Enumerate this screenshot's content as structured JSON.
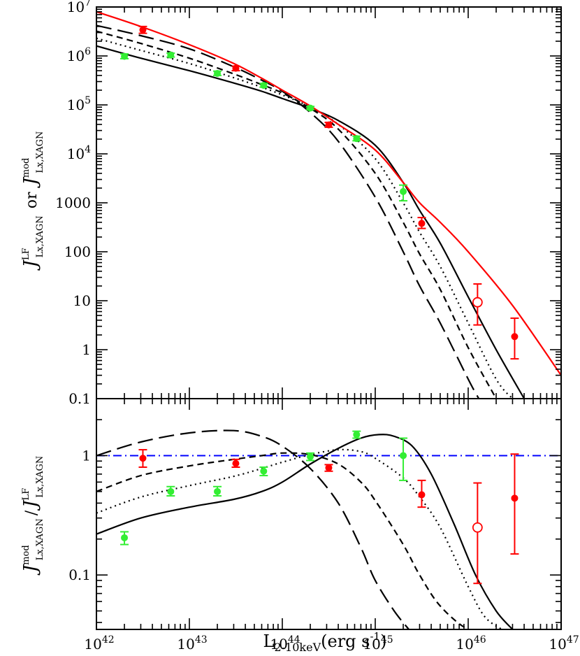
{
  "chart_data": [
    {
      "type": "line",
      "panel": "top",
      "xscale": "log",
      "yscale": "log",
      "xlim": [
        1e+42,
        1e+47
      ],
      "ylim": [
        0.1,
        10000000.0
      ],
      "xlabel": "L2-10keV(erg s-1)",
      "xlabel_main": "L",
      "xlabel_sub": "2-10keV",
      "xlabel_unit": "(erg s",
      "xlabel_unit_sup": "-1",
      "xlabel_close": ")",
      "ylabel": "J^LF_Lx,XAGN or J^mod_Lx,XAGN",
      "ylabel_parts": {
        "sym": "J",
        "sup_a": "LF",
        "sub_a": "Lx,XAGN",
        "mid": "or",
        "sup_b": "mod",
        "sub_b": "Lx,XAGN"
      },
      "yticks": [
        {
          "v": 10000000.0,
          "label": "10",
          "sup": "7"
        },
        {
          "v": 1000000.0,
          "label": "10",
          "sup": "6"
        },
        {
          "v": 100000.0,
          "label": "10",
          "sup": "5"
        },
        {
          "v": 10000.0,
          "label": "10",
          "sup": "4"
        },
        {
          "v": 1000,
          "label": "1000",
          "sup": ""
        },
        {
          "v": 100,
          "label": "100",
          "sup": ""
        },
        {
          "v": 10,
          "label": "10",
          "sup": ""
        },
        {
          "v": 1,
          "label": "1",
          "sup": ""
        },
        {
          "v": 0.1,
          "label": "0.1",
          "sup": ""
        }
      ],
      "series": [
        {
          "style": "solid-black",
          "color": "#000000",
          "x": [
            1e+42,
            3e+42,
            1e+43,
            3e+43,
            6e+43,
            1e+44,
            2e+44,
            4e+44,
            1e+45,
            2e+45,
            3e+45,
            5e+45,
            1e+46,
            2e+46,
            4e+46
          ],
          "y": [
            1600000.0,
            900000.0,
            500000.0,
            280000.0,
            190000.0,
            135000.0,
            85000.0,
            48000.0,
            15000.0,
            2600,
            700,
            150,
            12,
            1.0,
            0.1
          ]
        },
        {
          "style": "dotted-black",
          "color": "#000000",
          "x": [
            1e+42,
            3e+42,
            1e+43,
            3e+43,
            6e+43,
            1e+44,
            2e+44,
            4e+44,
            1e+45,
            2e+45,
            3e+45,
            5e+45,
            1e+46,
            2e+46,
            3e+46
          ],
          "y": [
            2300000.0,
            1300000.0,
            700000.0,
            360000.0,
            230000.0,
            160000.0,
            90000.0,
            40000.0,
            8000.0,
            1000,
            250,
            50,
            3.5,
            0.25,
            0.1
          ]
        },
        {
          "style": "short-dash-black",
          "color": "#000000",
          "x": [
            1e+42,
            3e+42,
            1e+43,
            3e+43,
            6e+43,
            1e+44,
            2e+44,
            4e+44,
            1e+45,
            2e+45,
            3e+45,
            5e+45,
            1e+46,
            2e+46
          ],
          "y": [
            3200000.0,
            1800000.0,
            900000.0,
            430000.0,
            260000.0,
            175000.0,
            85000.0,
            32000.0,
            4000.0,
            400,
            90,
            17,
            1.1,
            0.1
          ]
        },
        {
          "style": "long-dash-black",
          "color": "#000000",
          "x": [
            1e+42,
            3e+42,
            1e+43,
            3e+43,
            6e+43,
            1e+44,
            2e+44,
            4e+44,
            1e+45,
            2e+45,
            3e+45,
            5e+45,
            1e+46,
            1.3e+46
          ],
          "y": [
            4200000.0,
            2600000.0,
            1400000.0,
            600000.0,
            320000.0,
            190000.0,
            70000.0,
            18000.0,
            1300,
            100,
            20,
            3.5,
            0.25,
            0.1
          ]
        },
        {
          "style": "solid-red",
          "color": "#ff0000",
          "x": [
            1e+42,
            3e+42,
            1e+43,
            3e+43,
            6e+43,
            1e+44,
            2e+44,
            4e+44,
            1e+45,
            2e+45,
            3e+45,
            5e+45,
            1e+46,
            3e+46,
            1e+47
          ],
          "y": [
            8000000.0,
            4000000.0,
            1700000.0,
            700000.0,
            350000.0,
            200000.0,
            95000.0,
            40000.0,
            12000.0,
            2600.0,
            1000,
            400,
            100,
            8,
            0.3
          ]
        }
      ],
      "points": [
        {
          "color": "#ff0000",
          "x": 3.16e+42,
          "y": 3400000.0,
          "ylo": 2900000.0,
          "yhi": 4000000.0,
          "marker": "filled"
        },
        {
          "color": "#ff0000",
          "x": 3.16e+43,
          "y": 560000.0,
          "ylo": 500000.0,
          "yhi": 620000.0,
          "marker": "filled"
        },
        {
          "color": "#ff0000",
          "x": 3.16e+44,
          "y": 39000.0,
          "ylo": 35000.0,
          "yhi": 44000.0,
          "marker": "filled"
        },
        {
          "color": "#ff0000",
          "x": 3.16e+45,
          "y": 380,
          "ylo": 300,
          "yhi": 500,
          "marker": "filled"
        },
        {
          "color": "#ff0000",
          "x": 1.26e+46,
          "y": 9.3,
          "ylo": 3.2,
          "yhi": 22,
          "marker": "open"
        },
        {
          "color": "#ff0000",
          "x": 3.16e+46,
          "y": 1.85,
          "ylo": 0.65,
          "yhi": 4.4,
          "marker": "filled"
        },
        {
          "color": "#33ee33",
          "x": 2e+42,
          "y": 980000.0,
          "ylo": 880000.0,
          "yhi": 1100000.0,
          "marker": "filled"
        },
        {
          "color": "#33ee33",
          "x": 6.3e+42,
          "y": 1040000.0,
          "ylo": 950000.0,
          "yhi": 1140000.0,
          "marker": "filled"
        },
        {
          "color": "#33ee33",
          "x": 2e+43,
          "y": 440000.0,
          "ylo": 400000.0,
          "yhi": 490000.0,
          "marker": "filled"
        },
        {
          "color": "#33ee33",
          "x": 6.3e+43,
          "y": 250000.0,
          "ylo": 230000.0,
          "yhi": 275000.0,
          "marker": "filled"
        },
        {
          "color": "#33ee33",
          "x": 2e+44,
          "y": 86000.0,
          "ylo": 80000.0,
          "yhi": 93000.0,
          "marker": "filled"
        },
        {
          "color": "#33ee33",
          "x": 6.3e+44,
          "y": 20500.0,
          "ylo": 18500.0,
          "yhi": 23000.0,
          "marker": "filled"
        },
        {
          "color": "#33ee33",
          "x": 2e+45,
          "y": 1700,
          "ylo": 1100,
          "yhi": 2300,
          "marker": "filled"
        }
      ]
    },
    {
      "type": "line",
      "panel": "bottom",
      "xscale": "log",
      "yscale": "log",
      "xlim": [
        1e+42,
        1e+47
      ],
      "ylim": [
        0.035,
        3.0
      ],
      "ylabel": "J^mod_Lx,XAGN / J^LF_Lx,XAGN",
      "ylabel_parts": {
        "sym": "J",
        "sup_a": "mod",
        "sub_a": "Lx,XAGN",
        "mid": "/",
        "sup_b": "LF",
        "sub_b": "Lx,XAGN"
      },
      "yticks": [
        {
          "v": 1,
          "label": "1",
          "sup": ""
        },
        {
          "v": 0.1,
          "label": "0.1",
          "sup": ""
        }
      ],
      "xticks": [
        {
          "v": 1e+42,
          "label": "10",
          "sup": "42"
        },
        {
          "v": 1e+43,
          "label": "10",
          "sup": "43"
        },
        {
          "v": 1e+44,
          "label": "10",
          "sup": "44"
        },
        {
          "v": 1e+45,
          "label": "10",
          "sup": "45"
        },
        {
          "v": 1e+46,
          "label": "10",
          "sup": "46"
        },
        {
          "v": 1e+47,
          "label": "10",
          "sup": "47"
        }
      ],
      "reference_line": {
        "y": 1,
        "color": "#0000ff",
        "style": "dash-dot"
      },
      "series": [
        {
          "style": "solid-black",
          "color": "#000000",
          "x": [
            1e+42,
            3e+42,
            1e+43,
            3e+43,
            6e+43,
            1e+44,
            2e+44,
            4e+44,
            7e+44,
            1.1e+45,
            1.6e+45,
            2.5e+45,
            4e+45,
            7e+45,
            1.2e+46,
            2e+46,
            3e+46
          ],
          "y": [
            0.22,
            0.3,
            0.37,
            0.43,
            0.5,
            0.6,
            0.85,
            1.15,
            1.4,
            1.5,
            1.45,
            1.2,
            0.7,
            0.27,
            0.1,
            0.05,
            0.035
          ]
        },
        {
          "style": "dotted-black",
          "color": "#000000",
          "x": [
            1e+42,
            3e+42,
            1e+43,
            3e+43,
            6e+43,
            1e+44,
            2e+44,
            4e+44,
            7e+44,
            1e+45,
            2e+45,
            3e+45,
            5e+45,
            1e+46,
            1.5e+46,
            2.3e+46
          ],
          "y": [
            0.33,
            0.45,
            0.56,
            0.67,
            0.78,
            0.88,
            1.02,
            1.12,
            1.08,
            0.95,
            0.65,
            0.45,
            0.25,
            0.08,
            0.045,
            0.035
          ]
        },
        {
          "style": "short-dash-black",
          "color": "#000000",
          "x": [
            1e+42,
            3e+42,
            1e+43,
            3e+43,
            6e+43,
            1e+44,
            2e+44,
            4e+44,
            7e+44,
            1e+45,
            2e+45,
            3e+45,
            5e+45,
            1e+46,
            1.7e+46
          ],
          "y": [
            0.5,
            0.68,
            0.82,
            0.93,
            1.0,
            1.05,
            1.02,
            0.85,
            0.6,
            0.42,
            0.18,
            0.1,
            0.055,
            0.035,
            0.035
          ]
        },
        {
          "style": "long-dash-black",
          "color": "#000000",
          "x": [
            1e+42,
            3e+42,
            1e+43,
            3e+43,
            6e+43,
            1e+44,
            2e+44,
            4e+44,
            7e+44,
            1e+45,
            1.6e+45,
            2.3e+45
          ],
          "y": [
            1.0,
            1.3,
            1.55,
            1.62,
            1.45,
            1.2,
            0.78,
            0.4,
            0.17,
            0.09,
            0.05,
            0.035
          ]
        }
      ],
      "points": [
        {
          "color": "#ff0000",
          "x": 3.16e+42,
          "y": 0.95,
          "ylo": 0.8,
          "yhi": 1.12,
          "marker": "filled"
        },
        {
          "color": "#ff0000",
          "x": 3.16e+43,
          "y": 0.86,
          "ylo": 0.8,
          "yhi": 0.93,
          "marker": "filled"
        },
        {
          "color": "#ff0000",
          "x": 3.16e+44,
          "y": 0.79,
          "ylo": 0.74,
          "yhi": 0.84,
          "marker": "filled"
        },
        {
          "color": "#ff0000",
          "x": 3.16e+45,
          "y": 0.47,
          "ylo": 0.37,
          "yhi": 0.62,
          "marker": "filled"
        },
        {
          "color": "#ff0000",
          "x": 1.26e+46,
          "y": 0.25,
          "ylo": 0.085,
          "yhi": 0.59,
          "marker": "open"
        },
        {
          "color": "#ff0000",
          "x": 3.16e+46,
          "y": 0.44,
          "ylo": 0.15,
          "yhi": 1.03,
          "marker": "filled"
        },
        {
          "color": "#33ee33",
          "x": 2e+42,
          "y": 0.205,
          "ylo": 0.18,
          "yhi": 0.23,
          "marker": "filled"
        },
        {
          "color": "#33ee33",
          "x": 6.3e+42,
          "y": 0.5,
          "ylo": 0.46,
          "yhi": 0.55,
          "marker": "filled"
        },
        {
          "color": "#33ee33",
          "x": 2e+43,
          "y": 0.5,
          "ylo": 0.46,
          "yhi": 0.55,
          "marker": "filled"
        },
        {
          "color": "#33ee33",
          "x": 6.3e+43,
          "y": 0.74,
          "ylo": 0.68,
          "yhi": 0.8,
          "marker": "filled"
        },
        {
          "color": "#33ee33",
          "x": 2e+44,
          "y": 0.98,
          "ylo": 0.91,
          "yhi": 1.05,
          "marker": "filled"
        },
        {
          "color": "#33ee33",
          "x": 6.3e+44,
          "y": 1.5,
          "ylo": 1.4,
          "yhi": 1.6,
          "marker": "filled"
        },
        {
          "color": "#33ee33",
          "x": 2e+45,
          "y": 1.0,
          "ylo": 0.62,
          "yhi": 1.4,
          "marker": "filled"
        }
      ]
    }
  ]
}
